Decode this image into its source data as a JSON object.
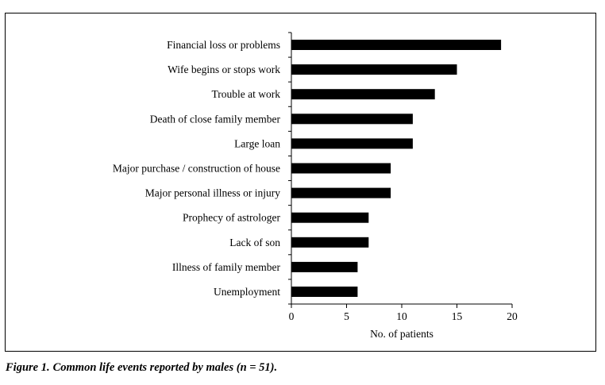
{
  "chart_data": {
    "type": "bar",
    "orientation": "horizontal",
    "categories": [
      "Financial loss or problems",
      "Wife begins or stops work",
      "Trouble at work",
      "Death of close family member",
      "Large loan",
      "Major purchase / construction of house",
      "Major personal illness or injury",
      "Prophecy of astrologer",
      "Lack of son",
      "Illness of family member",
      "Unemployment"
    ],
    "values": [
      19,
      15,
      13,
      11,
      11,
      9,
      9,
      7,
      7,
      6,
      6
    ],
    "xlabel": "No. of patients",
    "ylabel": "",
    "xlim": [
      0,
      20
    ],
    "xticks": [
      0,
      5,
      10,
      15,
      20
    ],
    "grid": false,
    "bar_color": "#000000"
  },
  "caption": {
    "label": "Figure 1.",
    "text": "Common life events reported by males (n = 51)."
  }
}
